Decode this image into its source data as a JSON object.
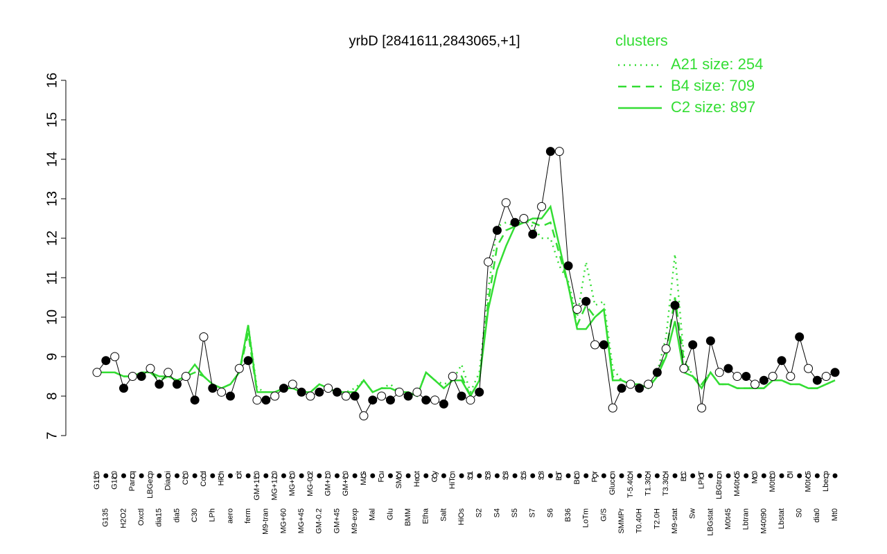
{
  "chart_data": {
    "type": "line",
    "title": "yrbD [2841611,2843065,+1]",
    "categories": [
      "G150",
      "G135",
      "G180",
      "H2O2",
      "Paraq",
      "Oxctl",
      "LBGexp",
      "dia15",
      "Diami",
      "dia5",
      "C90",
      "C30",
      "Cold",
      "LPh",
      "HPh",
      "aero",
      "nit",
      "ferm",
      "GM+150",
      "M9-tran",
      "MG+120",
      "MG+60",
      "MG+90",
      "MG+45",
      "MG-0.2",
      "GM-0.2",
      "GM+10",
      "GM+45",
      "GM+90",
      "M9-exp",
      "M/G",
      "Mal",
      "Fru",
      "Glu",
      "SMM",
      "BMM",
      "Heat",
      "Etha",
      "Gly",
      "Salt",
      "HiTm",
      "HiOs",
      "S1",
      "S2",
      "S3",
      "S4",
      "S3",
      "S5",
      "S6",
      "S7",
      "S8",
      "S6",
      "BT",
      "B36",
      "B60",
      "LoTm",
      "Pyr",
      "G/S",
      "Glucon",
      "SMMPr",
      "T-5.40H",
      "T0.40H",
      "T1.30H",
      "T2.0H",
      "T3.30H",
      "M9-stat",
      "BC",
      "Sw",
      "LPhT",
      "LBGstat",
      "LBGtran",
      "M0t45",
      "M40t45",
      "Lbtran",
      "Mt0",
      "M40t90",
      "M0t90",
      "Lbstat",
      "BI",
      "S0",
      "M0t45",
      "dia0",
      "Lbexp",
      "Mt0"
    ],
    "values": [
      8.6,
      8.9,
      9.0,
      8.2,
      8.5,
      8.5,
      8.7,
      8.3,
      8.6,
      8.3,
      8.5,
      7.9,
      9.5,
      8.2,
      8.1,
      8.0,
      8.7,
      8.9,
      7.9,
      7.9,
      8.0,
      8.2,
      8.3,
      8.1,
      8.0,
      8.1,
      8.2,
      8.1,
      8.0,
      8.0,
      7.5,
      7.9,
      8.0,
      7.9,
      8.1,
      8.0,
      8.1,
      7.9,
      7.9,
      7.8,
      8.5,
      8.0,
      7.9,
      8.1,
      11.4,
      12.2,
      12.9,
      12.4,
      12.5,
      12.1,
      12.8,
      14.2,
      14.2,
      11.3,
      10.2,
      10.4,
      9.3,
      9.3,
      7.7,
      8.2,
      8.3,
      8.2,
      8.3,
      8.6,
      9.2,
      10.3,
      8.7,
      9.3,
      7.7,
      9.4,
      8.6,
      8.7,
      8.5,
      8.5,
      8.3,
      8.4,
      8.5,
      8.9,
      8.5,
      9.5,
      8.7,
      8.4,
      8.5,
      8.6
    ],
    "legend_title": "clusters",
    "legend": "top-right",
    "series": [
      {
        "name": "A21 size: 254",
        "color": "#33dd33",
        "dash": "dotted",
        "values": [
          8.6,
          8.6,
          8.6,
          8.5,
          8.5,
          8.6,
          8.6,
          8.4,
          8.5,
          8.4,
          8.5,
          8.6,
          8.5,
          8.3,
          8.2,
          8.3,
          8.6,
          9.8,
          8.2,
          8.1,
          8.1,
          8.2,
          8.2,
          8.1,
          8.1,
          8.3,
          8.2,
          8.1,
          8.1,
          8.2,
          8.4,
          8.1,
          8.2,
          8.3,
          8.1,
          8.1,
          8.0,
          8.6,
          8.4,
          8.3,
          8.4,
          8.8,
          8.1,
          8.6,
          10.7,
          12.3,
          12.4,
          12.3,
          12.5,
          12.3,
          12.0,
          12.0,
          11.3,
          10.9,
          10.0,
          11.4,
          10.3,
          10.4,
          8.7,
          8.4,
          8.3,
          8.3,
          8.2,
          8.6,
          9.5,
          11.6,
          9.0,
          8.5,
          8.3,
          8.6,
          8.3,
          8.3,
          8.2,
          8.2,
          8.2,
          8.2,
          8.4,
          8.4,
          8.3,
          8.3,
          8.2,
          8.2,
          8.3,
          8.4
        ]
      },
      {
        "name": "B4 size: 709",
        "color": "#33dd33",
        "dash": "dashed",
        "values": [
          8.6,
          8.6,
          8.6,
          8.5,
          8.5,
          8.6,
          8.6,
          8.4,
          8.5,
          8.4,
          8.5,
          8.6,
          8.5,
          8.3,
          8.2,
          8.3,
          8.6,
          9.6,
          8.1,
          8.1,
          8.1,
          8.2,
          8.2,
          8.1,
          8.1,
          8.3,
          8.2,
          8.1,
          8.1,
          8.1,
          8.4,
          8.1,
          8.2,
          8.2,
          8.1,
          8.1,
          8.0,
          8.6,
          8.4,
          8.2,
          8.4,
          8.5,
          8.0,
          8.4,
          10.4,
          11.8,
          12.2,
          12.3,
          12.4,
          12.4,
          12.3,
          12.4,
          11.6,
          10.8,
          9.8,
          10.3,
          10.0,
          10.2,
          8.5,
          8.4,
          8.3,
          8.3,
          8.2,
          8.5,
          9.1,
          10.5,
          8.9,
          8.5,
          8.3,
          8.6,
          8.3,
          8.3,
          8.2,
          8.2,
          8.2,
          8.2,
          8.4,
          8.4,
          8.3,
          8.3,
          8.2,
          8.2,
          8.3,
          8.4
        ]
      },
      {
        "name": "C2 size: 897",
        "color": "#33dd33",
        "dash": "solid",
        "values": [
          8.6,
          8.6,
          8.6,
          8.5,
          8.5,
          8.6,
          8.6,
          8.5,
          8.5,
          8.4,
          8.5,
          8.8,
          8.5,
          8.3,
          8.2,
          8.3,
          8.6,
          9.8,
          8.1,
          8.1,
          8.1,
          8.2,
          8.2,
          8.1,
          8.1,
          8.3,
          8.2,
          8.1,
          8.1,
          8.1,
          8.4,
          8.1,
          8.2,
          8.2,
          8.1,
          8.1,
          8.0,
          8.6,
          8.4,
          8.2,
          8.4,
          8.4,
          8.0,
          8.4,
          10.2,
          11.2,
          11.8,
          12.3,
          12.4,
          12.5,
          12.5,
          12.8,
          11.8,
          10.8,
          9.7,
          9.7,
          10.0,
          10.2,
          8.4,
          8.4,
          8.3,
          8.3,
          8.2,
          8.5,
          9.0,
          9.9,
          8.6,
          8.5,
          8.2,
          8.6,
          8.3,
          8.3,
          8.2,
          8.2,
          8.2,
          8.2,
          8.4,
          8.4,
          8.3,
          8.3,
          8.2,
          8.2,
          8.3,
          8.4
        ]
      }
    ],
    "ylim": [
      7,
      16
    ],
    "yticks": [
      7,
      8,
      9,
      10,
      11,
      12,
      13,
      14,
      15,
      16
    ]
  }
}
